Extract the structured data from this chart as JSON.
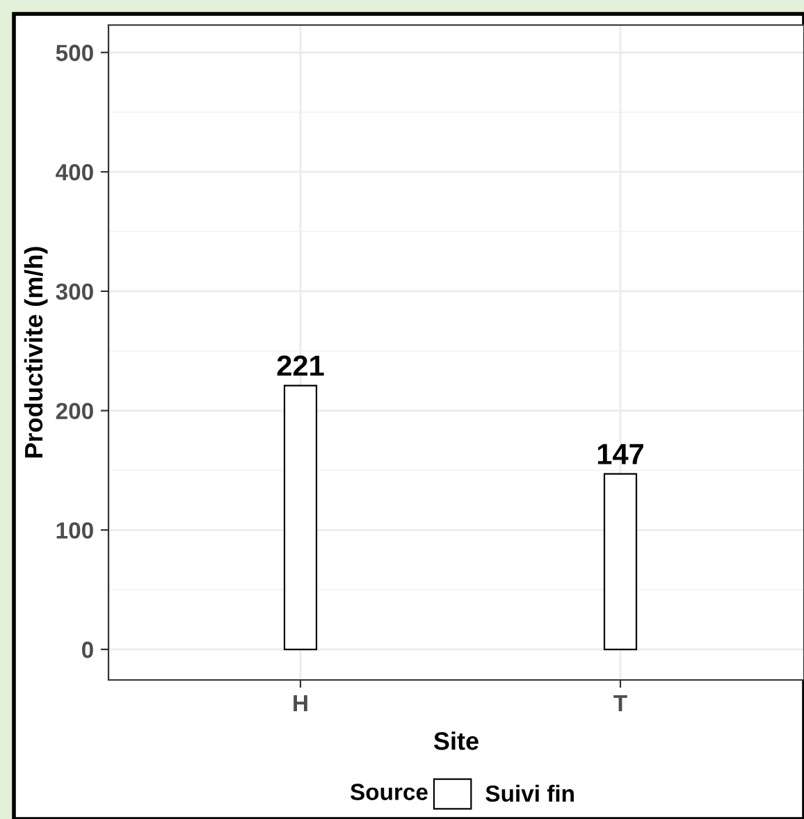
{
  "chart_data": {
    "type": "bar",
    "xlabel": "Site",
    "ylabel": "Productivite (m/h)",
    "legend_title": "Source",
    "categories": [
      "H",
      "T"
    ],
    "series": [
      {
        "name": "Suivi fin",
        "color": "#ffffff",
        "values": [
          221,
          147
        ]
      }
    ],
    "ylim": [
      -25.6,
      523
    ],
    "yticks": [
      0,
      100,
      200,
      300,
      400,
      500
    ],
    "data_labels": true,
    "grid": true,
    "legend": "bottom"
  }
}
